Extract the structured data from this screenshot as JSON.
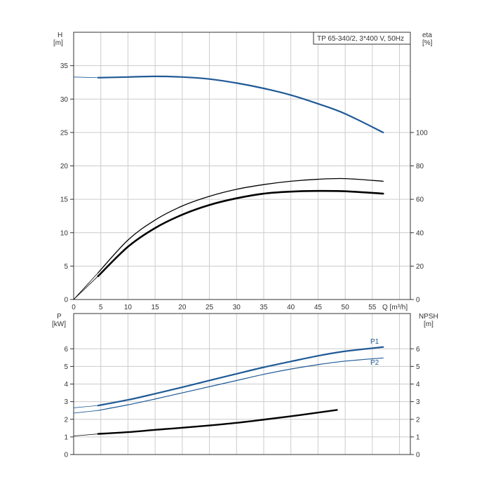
{
  "chart_data": [
    {
      "type": "line",
      "title": "TP 65-340/2, 3*400 V, 50Hz",
      "xlabel": "Q [m³/h]",
      "ylabel_left": [
        "H",
        "[m]"
      ],
      "ylabel_right": [
        "eta",
        "[%]"
      ],
      "xlim": [
        0,
        62
      ],
      "ylim_left": [
        0,
        40
      ],
      "ylim_right": [
        0,
        160
      ],
      "x_ticks": [
        0,
        5,
        10,
        15,
        20,
        25,
        30,
        35,
        40,
        45,
        50,
        55
      ],
      "y_ticks_left": [
        0,
        5,
        10,
        15,
        20,
        25,
        30,
        35
      ],
      "y_ticks_right": [
        0,
        20,
        40,
        60,
        80,
        100
      ],
      "grid": true,
      "series": [
        {
          "axis": "left",
          "color": "#1f5a96",
          "width": 2.2,
          "x": [
            4.5,
            10,
            15,
            20,
            25,
            30,
            35,
            40,
            45,
            50,
            57
          ],
          "y": [
            33.2,
            33.3,
            33.4,
            33.3,
            33.0,
            32.4,
            31.6,
            30.6,
            29.3,
            27.8,
            25.0
          ],
          "ext_x": [
            0,
            4.5
          ],
          "ext_y": [
            33.3,
            33.2
          ]
        },
        {
          "axis": "right",
          "color": "#000000",
          "width": 1.3,
          "x": [
            4.5,
            10,
            15,
            20,
            25,
            30,
            35,
            40,
            45,
            50,
            57
          ],
          "y": [
            16.0,
            35.6,
            47.6,
            56.0,
            61.8,
            66.0,
            68.8,
            70.8,
            72.0,
            72.4,
            70.8
          ],
          "ext_x": [
            0,
            4.5
          ],
          "ext_y": [
            0,
            16.0
          ]
        },
        {
          "axis": "right",
          "color": "#000000",
          "width": 2.6,
          "x": [
            4.5,
            10,
            15,
            20,
            25,
            30,
            35,
            40,
            45,
            50,
            57
          ],
          "y": [
            14.0,
            31.6,
            42.8,
            50.8,
            56.6,
            60.6,
            63.4,
            64.6,
            65.0,
            64.8,
            63.4
          ],
          "ext_x": [
            0,
            4.5
          ],
          "ext_y": [
            0,
            14.0
          ]
        }
      ]
    },
    {
      "type": "line",
      "xlim": [
        0,
        62
      ],
      "ylabel_left": [
        "P",
        "[kW]"
      ],
      "ylabel_right": [
        "NPSH",
        "[m]"
      ],
      "ylim_left": [
        0,
        8
      ],
      "ylim_right": [
        0,
        8
      ],
      "y_ticks_left": [
        0,
        1,
        2,
        3,
        4,
        5,
        6
      ],
      "y_ticks_right": [
        0,
        1,
        2,
        3,
        4,
        5,
        6
      ],
      "grid": true,
      "series": [
        {
          "name": "P1",
          "axis": "left",
          "color": "#1f5a96",
          "width": 2.2,
          "x": [
            4.5,
            10,
            15,
            20,
            25,
            30,
            35,
            40,
            45,
            50,
            57
          ],
          "y": [
            2.78,
            3.1,
            3.45,
            3.82,
            4.2,
            4.58,
            4.95,
            5.28,
            5.6,
            5.86,
            6.1
          ],
          "ext_x": [
            0,
            4.5
          ],
          "ext_y": [
            2.65,
            2.78
          ]
        },
        {
          "name": "P2",
          "axis": "left",
          "color": "#1f5a96",
          "width": 1.2,
          "x": [
            4.5,
            10,
            15,
            20,
            25,
            30,
            35,
            40,
            45,
            50,
            57
          ],
          "y": [
            2.5,
            2.82,
            3.15,
            3.5,
            3.85,
            4.2,
            4.55,
            4.85,
            5.1,
            5.3,
            5.48
          ],
          "ext_x": [
            0,
            4.5
          ],
          "ext_y": [
            2.35,
            2.5
          ]
        },
        {
          "axis": "right",
          "color": "#000000",
          "width": 2.4,
          "x": [
            4.5,
            10,
            15,
            20,
            25,
            30,
            35,
            40,
            45,
            48.5
          ],
          "y": [
            1.17,
            1.27,
            1.4,
            1.52,
            1.65,
            1.8,
            1.98,
            2.17,
            2.38,
            2.53
          ],
          "ext_x": [
            0,
            4.5
          ],
          "ext_y": [
            1.05,
            1.17
          ]
        }
      ]
    }
  ]
}
